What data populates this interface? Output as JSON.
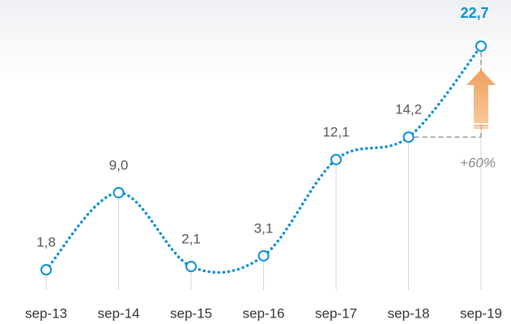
{
  "chart_data": {
    "type": "line",
    "categories": [
      "sep-13",
      "sep-14",
      "sep-15",
      "sep-16",
      "sep-17",
      "sep-18",
      "sep-19"
    ],
    "series": [
      {
        "color": "#0a8fd8",
        "values": [
          1.8,
          9.0,
          2.1,
          3.1,
          12.1,
          14.2,
          22.7
        ],
        "value_labels": [
          "1,8",
          "9,0",
          "2,1",
          "3,1",
          "12,1",
          "14,2",
          "22,7"
        ]
      }
    ],
    "annotation": "+60%"
  }
}
